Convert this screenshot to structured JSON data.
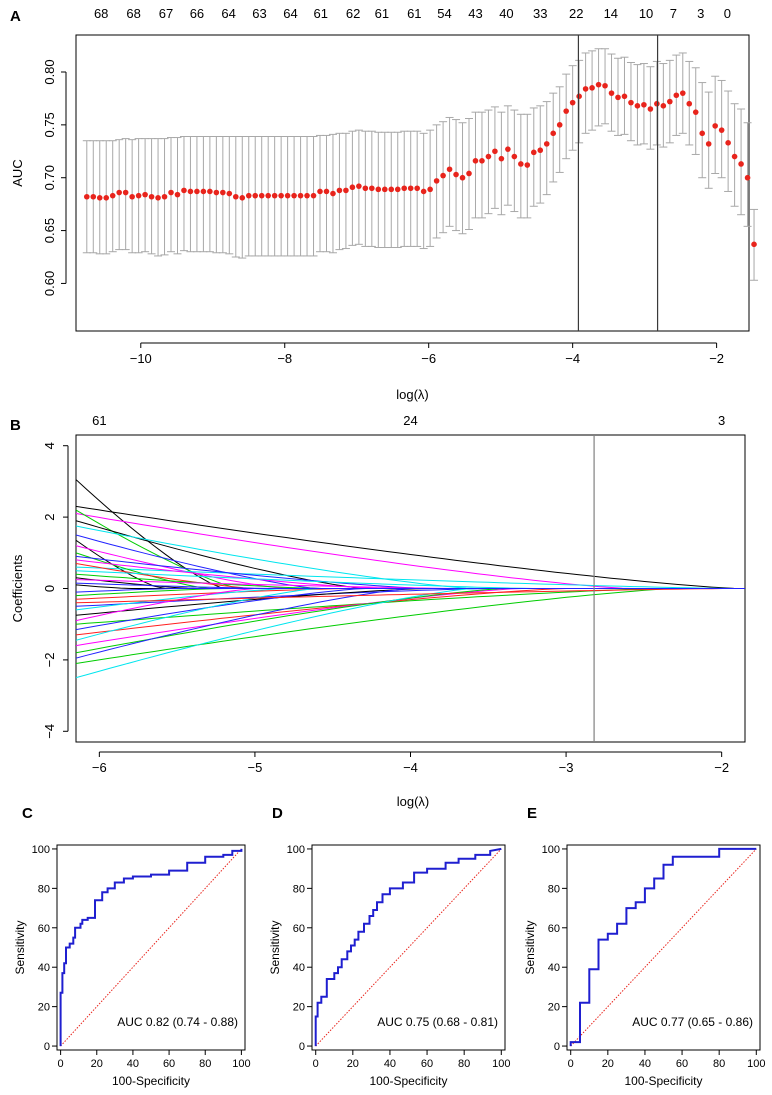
{
  "figure": {
    "panels": [
      {
        "letter": "A"
      },
      {
        "letter": "B"
      },
      {
        "letter": "C"
      },
      {
        "letter": "D"
      },
      {
        "letter": "E"
      }
    ]
  },
  "colors": {
    "points": "#e8241c",
    "errorbars": "#a8a8a8",
    "roc": "#1f1fd0",
    "diagonal": "#e8241c",
    "axes": "#000000",
    "vline": "#3a3a3a"
  },
  "chart_data": [
    {
      "id": "A",
      "type": "scatter",
      "title": "",
      "xlabel": "log(λ)",
      "ylabel": "AUC",
      "xlim": [
        -10.9,
        -1.55
      ],
      "ylim": [
        0.555,
        0.835
      ],
      "xticks": [
        -10,
        -8,
        -6,
        -4,
        -2
      ],
      "xtick_labels": [
        "−10",
        "−8",
        "−6",
        "−4",
        "−2"
      ],
      "yticks": [
        0.6,
        0.65,
        0.7,
        0.75,
        0.8
      ],
      "ytick_labels": [
        "0.60",
        "0.65",
        "0.70",
        "0.75",
        "0.80"
      ],
      "top_axis_labels": [
        "68",
        "68",
        "67",
        "66",
        "64",
        "63",
        "64",
        "61",
        "62",
        "61",
        "61",
        "54",
        "43",
        "40",
        "33",
        "22",
        "14",
        "10",
        "7",
        "3",
        "0"
      ],
      "top_axis_x": [
        -10.55,
        -10.1,
        -9.65,
        -9.22,
        -8.78,
        -8.35,
        -7.92,
        -7.5,
        -7.05,
        -6.65,
        -6.2,
        -5.78,
        -5.35,
        -4.92,
        -4.45,
        -3.95,
        -3.47,
        -2.98,
        -2.6,
        -2.22,
        -1.85
      ],
      "vlines": [
        -3.92,
        -2.82
      ],
      "n_points": 100,
      "x_start": -10.75,
      "x_step": 0.09,
      "mean": [
        0.682,
        0.682,
        0.681,
        0.681,
        0.683,
        0.686,
        0.686,
        0.682,
        0.683,
        0.684,
        0.682,
        0.681,
        0.682,
        0.686,
        0.684,
        0.688,
        0.687,
        0.687,
        0.687,
        0.687,
        0.686,
        0.686,
        0.685,
        0.682,
        0.681,
        0.683,
        0.683,
        0.683,
        0.683,
        0.683,
        0.683,
        0.683,
        0.683,
        0.683,
        0.683,
        0.683,
        0.687,
        0.687,
        0.685,
        0.688,
        0.688,
        0.691,
        0.692,
        0.69,
        0.69,
        0.689,
        0.689,
        0.689,
        0.689,
        0.69,
        0.69,
        0.69,
        0.687,
        0.689,
        0.697,
        0.702,
        0.708,
        0.703,
        0.7,
        0.704,
        0.716,
        0.716,
        0.72,
        0.725,
        0.718,
        0.727,
        0.72,
        0.713,
        0.712,
        0.724,
        0.726,
        0.732,
        0.742,
        0.75,
        0.763,
        0.771,
        0.777,
        0.784,
        0.785,
        0.788,
        0.787,
        0.78,
        0.776,
        0.777,
        0.771,
        0.768,
        0.769,
        0.765,
        0.77,
        0.768,
        0.772,
        0.778,
        0.78,
        0.77,
        0.762,
        0.742,
        0.732,
        0.749,
        0.745,
        0.733,
        0.72,
        0.713,
        0.7,
        0.637
      ],
      "upper": [
        0.735,
        0.735,
        0.735,
        0.735,
        0.735,
        0.736,
        0.737,
        0.736,
        0.737,
        0.737,
        0.737,
        0.737,
        0.737,
        0.738,
        0.738,
        0.739,
        0.739,
        0.739,
        0.739,
        0.739,
        0.739,
        0.739,
        0.739,
        0.739,
        0.739,
        0.739,
        0.739,
        0.739,
        0.739,
        0.739,
        0.739,
        0.739,
        0.739,
        0.739,
        0.739,
        0.739,
        0.74,
        0.74,
        0.741,
        0.742,
        0.742,
        0.744,
        0.745,
        0.744,
        0.744,
        0.743,
        0.743,
        0.743,
        0.743,
        0.744,
        0.744,
        0.744,
        0.742,
        0.745,
        0.75,
        0.753,
        0.757,
        0.755,
        0.752,
        0.756,
        0.762,
        0.762,
        0.764,
        0.767,
        0.762,
        0.768,
        0.764,
        0.76,
        0.76,
        0.766,
        0.768,
        0.772,
        0.78,
        0.786,
        0.798,
        0.806,
        0.811,
        0.818,
        0.82,
        0.822,
        0.822,
        0.817,
        0.813,
        0.814,
        0.809,
        0.807,
        0.808,
        0.805,
        0.81,
        0.808,
        0.811,
        0.816,
        0.818,
        0.81,
        0.804,
        0.79,
        0.781,
        0.796,
        0.792,
        0.782,
        0.77,
        0.765,
        0.752,
        0.67
      ],
      "lower": [
        0.629,
        0.629,
        0.628,
        0.628,
        0.63,
        0.632,
        0.632,
        0.629,
        0.629,
        0.63,
        0.628,
        0.626,
        0.627,
        0.63,
        0.628,
        0.631,
        0.63,
        0.63,
        0.63,
        0.63,
        0.629,
        0.629,
        0.628,
        0.625,
        0.624,
        0.626,
        0.626,
        0.626,
        0.626,
        0.626,
        0.626,
        0.626,
        0.626,
        0.626,
        0.626,
        0.626,
        0.63,
        0.63,
        0.629,
        0.632,
        0.633,
        0.636,
        0.637,
        0.635,
        0.635,
        0.634,
        0.634,
        0.634,
        0.634,
        0.635,
        0.635,
        0.635,
        0.633,
        0.635,
        0.643,
        0.648,
        0.654,
        0.65,
        0.647,
        0.651,
        0.662,
        0.662,
        0.666,
        0.671,
        0.665,
        0.674,
        0.668,
        0.662,
        0.662,
        0.673,
        0.676,
        0.684,
        0.696,
        0.705,
        0.718,
        0.726,
        0.733,
        0.742,
        0.745,
        0.749,
        0.751,
        0.744,
        0.74,
        0.741,
        0.735,
        0.731,
        0.732,
        0.727,
        0.731,
        0.729,
        0.733,
        0.74,
        0.742,
        0.731,
        0.722,
        0.7,
        0.69,
        0.704,
        0.7,
        0.687,
        0.673,
        0.665,
        0.654,
        0.603
      ]
    },
    {
      "id": "B",
      "type": "line",
      "title": "",
      "xlabel": "log(λ)",
      "ylabel": "Coefficients",
      "xlim": [
        -6.15,
        -1.85
      ],
      "ylim": [
        -4.3,
        4.3
      ],
      "xticks": [
        -6,
        -5,
        -4,
        -3,
        -2
      ],
      "xtick_labels": [
        "−6",
        "−5",
        "−4",
        "−3",
        "−2"
      ],
      "yticks": [
        -4,
        -2,
        0,
        2,
        4
      ],
      "ytick_labels": [
        "−4",
        "−2",
        "0",
        "2",
        "4"
      ],
      "top_axis_labels": [
        "61",
        "24",
        "3"
      ],
      "top_axis_x": [
        -6,
        -4,
        -2
      ],
      "vlines": [
        -2.82
      ],
      "series": [
        {
          "color": "#000000",
          "start": 3.05,
          "zero_at": -5.2
        },
        {
          "color": "#000000",
          "start": 2.3,
          "zero_at": -1.9
        },
        {
          "color": "#ff00ff",
          "start": 2.1,
          "zero_at": -2.6
        },
        {
          "color": "#00cc00",
          "start": 2.2,
          "zero_at": -5.1
        },
        {
          "color": "#000000",
          "start": 1.9,
          "zero_at": -4.3
        },
        {
          "color": "#00e5ee",
          "start": 1.75,
          "zero_at": -3.6
        },
        {
          "color": "#2222ff",
          "start": 1.5,
          "zero_at": -4.6
        },
        {
          "color": "#000000",
          "start": 1.35,
          "zero_at": -5.6
        },
        {
          "color": "#ff00ff",
          "start": 1.2,
          "zero_at": -4.8
        },
        {
          "color": "#00e5ee",
          "start": 0.6,
          "zero_at": -1.95
        },
        {
          "color": "#00cc00",
          "start": 1.0,
          "zero_at": -5.3
        },
        {
          "color": "#ff00ff",
          "start": 0.8,
          "zero_at": -4.2
        },
        {
          "color": "#2222ff",
          "start": 0.9,
          "zero_at": -3.9
        },
        {
          "color": "#ff2020",
          "start": 0.7,
          "zero_at": -5.0
        },
        {
          "color": "#00e5ee",
          "start": 0.5,
          "zero_at": -3.2
        },
        {
          "color": "#00cc00",
          "start": 0.4,
          "zero_at": -4.6
        },
        {
          "color": "#000000",
          "start": 0.3,
          "zero_at": -5.4
        },
        {
          "color": "#ff00ff",
          "start": 0.25,
          "zero_at": -3.7
        },
        {
          "color": "#2222ff",
          "start": 0.15,
          "zero_at": -4.9
        },
        {
          "color": "#00cc00",
          "start": -0.2,
          "zero_at": -5.2
        },
        {
          "color": "#ff2020",
          "start": -0.3,
          "zero_at": -4.4
        },
        {
          "color": "#2222ff",
          "start": -0.5,
          "zero_at": -3.5
        },
        {
          "color": "#00e5ee",
          "start": -0.6,
          "zero_at": -4.8
        },
        {
          "color": "#000000",
          "start": -0.75,
          "zero_at": -3.9
        },
        {
          "color": "#ff00ff",
          "start": -0.9,
          "zero_at": -5.0
        },
        {
          "color": "#00cc00",
          "start": -1.0,
          "zero_at": -2.4
        },
        {
          "color": "#2222ff",
          "start": -1.15,
          "zero_at": -4.3
        },
        {
          "color": "#ff2020",
          "start": -1.3,
          "zero_at": -3.0
        },
        {
          "color": "#00e5ee",
          "start": -1.45,
          "zero_at": -4.6
        },
        {
          "color": "#ff00ff",
          "start": -1.6,
          "zero_at": -3.3
        },
        {
          "color": "#00cc00",
          "start": -1.8,
          "zero_at": -3.4
        },
        {
          "color": "#2222ff",
          "start": -1.95,
          "zero_at": -4.0
        },
        {
          "color": "#00cc00",
          "start": -2.1,
          "zero_at": -2.3
        },
        {
          "color": "#00e5ee",
          "start": -2.5,
          "zero_at": -3.6
        },
        {
          "color": "#ff2020",
          "start": -0.4,
          "zero_at": -1.95
        },
        {
          "color": "#000000",
          "start": 0.1,
          "zero_at": -5.8
        },
        {
          "color": "#2222ff",
          "start": -0.1,
          "zero_at": -5.5
        }
      ]
    },
    {
      "id": "C",
      "type": "line",
      "title": "",
      "xlabel": "100-Specificity",
      "ylabel": "Sensitivity",
      "xlim": [
        -2,
        102
      ],
      "ylim": [
        -2,
        102
      ],
      "xticks": [
        0,
        20,
        40,
        60,
        80,
        100
      ],
      "yticks": [
        0,
        20,
        40,
        60,
        80,
        100
      ],
      "auc_label": "AUC 0.82 (0.74 - 0.88)",
      "fpr": [
        0,
        0,
        1,
        1,
        2,
        2,
        3,
        3,
        5,
        5,
        7,
        7,
        8,
        8,
        11,
        11,
        12,
        12,
        15,
        15,
        19,
        19,
        23,
        23,
        26,
        26,
        30,
        30,
        35,
        35,
        40,
        40,
        50,
        50,
        60,
        60,
        70,
        70,
        80,
        80,
        90,
        90,
        95,
        95,
        100,
        100
      ],
      "tpr": [
        0,
        27,
        27,
        37,
        37,
        42,
        42,
        50,
        50,
        52,
        52,
        55,
        55,
        60,
        60,
        62,
        62,
        64,
        64,
        65,
        65,
        74,
        74,
        78,
        78,
        80,
        80,
        83,
        83,
        85,
        85,
        86,
        86,
        87,
        87,
        89,
        89,
        93,
        93,
        96,
        96,
        97,
        97,
        99,
        99,
        100
      ]
    },
    {
      "id": "D",
      "type": "line",
      "title": "",
      "xlabel": "100-Specificity",
      "ylabel": "Sensitivity",
      "xlim": [
        -2,
        102
      ],
      "ylim": [
        -2,
        102
      ],
      "xticks": [
        0,
        20,
        40,
        60,
        80,
        100
      ],
      "yticks": [
        0,
        20,
        40,
        60,
        80,
        100
      ],
      "auc_label": "AUC 0.75 (0.68 - 0.81)",
      "fpr": [
        0,
        0,
        1,
        1,
        3,
        3,
        6,
        6,
        10,
        10,
        12,
        12,
        14,
        14,
        17,
        17,
        19,
        19,
        21,
        21,
        23,
        23,
        26,
        26,
        29,
        29,
        31,
        31,
        33,
        33,
        36,
        36,
        40,
        40,
        47,
        47,
        53,
        53,
        60,
        60,
        70,
        70,
        77,
        77,
        86,
        86,
        94,
        94,
        100
      ],
      "tpr": [
        0,
        15,
        15,
        22,
        22,
        25,
        25,
        34,
        34,
        37,
        37,
        40,
        40,
        44,
        44,
        48,
        48,
        51,
        51,
        54,
        54,
        58,
        58,
        62,
        62,
        66,
        66,
        69,
        69,
        73,
        73,
        77,
        77,
        80,
        80,
        83,
        83,
        88,
        88,
        90,
        90,
        93,
        93,
        95,
        95,
        97,
        97,
        99,
        100
      ]
    },
    {
      "id": "E",
      "type": "line",
      "title": "",
      "xlabel": "100-Specificity",
      "ylabel": "Sensitivity",
      "xlim": [
        -2,
        102
      ],
      "ylim": [
        -2,
        102
      ],
      "xticks": [
        0,
        20,
        40,
        60,
        80,
        100
      ],
      "yticks": [
        0,
        20,
        40,
        60,
        80,
        100
      ],
      "auc_label": "AUC 0.77 (0.65 - 0.86)",
      "fpr": [
        0,
        0,
        5,
        5,
        10,
        10,
        15,
        15,
        20,
        20,
        25,
        25,
        30,
        30,
        35,
        35,
        40,
        40,
        45,
        45,
        50,
        50,
        55,
        55,
        80,
        80,
        100
      ],
      "tpr": [
        0,
        2,
        2,
        22,
        22,
        39,
        39,
        54,
        54,
        57,
        57,
        62,
        62,
        70,
        70,
        73,
        73,
        80,
        80,
        85,
        85,
        92,
        92,
        96,
        96,
        100,
        100
      ]
    }
  ]
}
